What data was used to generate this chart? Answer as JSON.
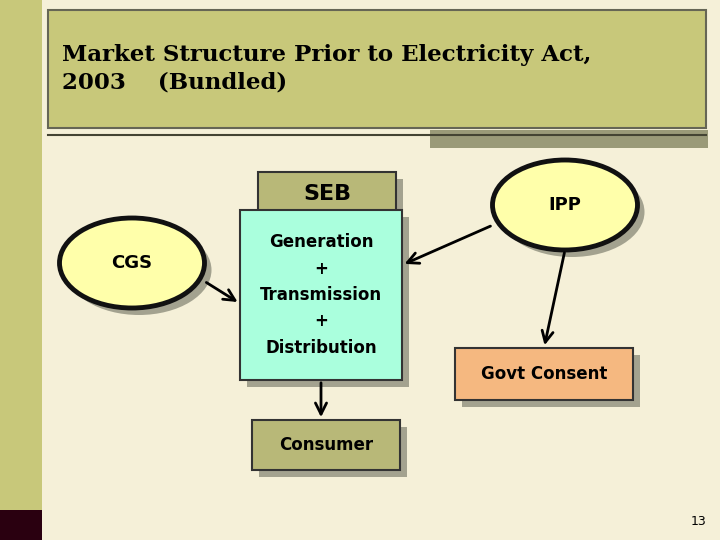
{
  "bg_color": "#f5f0d8",
  "title_text": "Market Structure Prior to Electricity Act,\n2003    (Bundled)",
  "title_box_color": "#c8c87a",
  "title_text_color": "#000000",
  "sidebar_color": "#c8c87a",
  "sidebar_dark": "#2a0010",
  "accent_bar_color": "#9a9a78",
  "cgs_label": "CGS",
  "ipp_label": "IPP",
  "seb_label": "SEB",
  "gen_label": "Generation\n+\nTransmission\n+\nDistribution",
  "consumer_label": "Consumer",
  "govt_label": "Govt Consent",
  "ellipse_fill": "#ffffaa",
  "ellipse_edge": "#111111",
  "seb_box_fill": "#b8b878",
  "gen_box_fill": "#aaffdd",
  "consumer_box_fill": "#b8b878",
  "govt_box_fill": "#f5b880",
  "shadow_color": "#888877",
  "page_num": "13"
}
